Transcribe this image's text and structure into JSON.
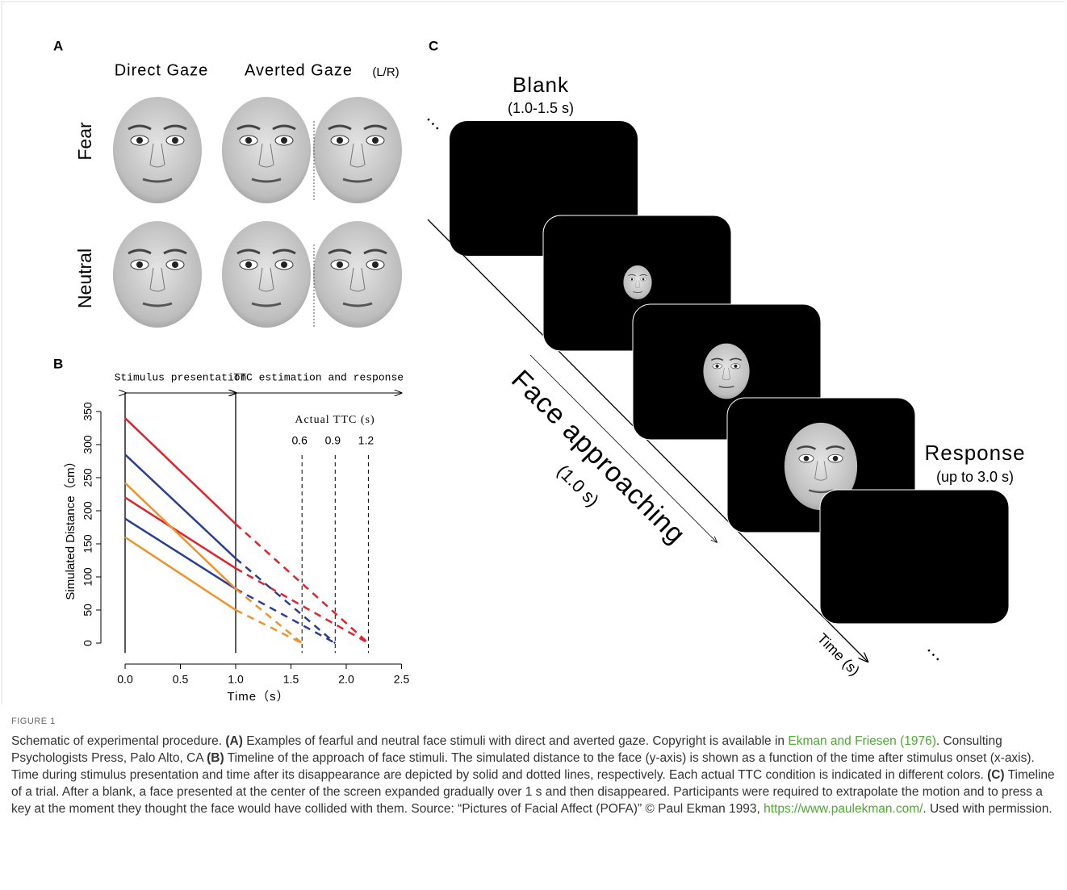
{
  "panel_a": {
    "label": "A",
    "columns": [
      "Direct Gaze",
      "Averted Gaze"
    ],
    "column_note": "(L/R)",
    "rows": [
      {
        "label": "Fear",
        "color": "#c1272d"
      },
      {
        "label": "Neutral",
        "color": "#a9a9a9"
      }
    ]
  },
  "chart_data": {
    "type": "line",
    "label": "B",
    "xlabel": "Time（s）",
    "ylabel": "Simulated Distance（cm）",
    "xlim": [
      -0.1,
      2.6
    ],
    "ylim": [
      -15,
      365
    ],
    "xticks": [
      {
        "value": 0,
        "label": "0.0"
      },
      0.5,
      {
        "value": 1,
        "label": "1.0"
      },
      1.5,
      {
        "value": 2,
        "label": "2.0"
      },
      2.5
    ],
    "yticks": [
      0,
      50,
      100,
      150,
      200,
      250,
      300,
      350
    ],
    "phases": [
      {
        "label": "Stimulus presentation",
        "start": 0,
        "end": 1
      },
      {
        "label": "TTC estimation and response",
        "start": 1,
        "end": 2.5
      }
    ],
    "ttc_title": "Actual TTC (s)",
    "ttc_lines": [
      {
        "ttc": 0.6,
        "x": 1.6,
        "color": "#f0922b"
      },
      {
        "ttc": 0.9,
        "x": 1.9,
        "color": "#2a3f94"
      },
      {
        "ttc": 1.2,
        "x": 2.2,
        "color": "#e0242c"
      }
    ],
    "series": [
      {
        "color": "#e0242c",
        "x": [
          0,
          1,
          2.2
        ],
        "values": [
          340,
          180,
          0
        ]
      },
      {
        "color": "#e0242c",
        "x": [
          0,
          1,
          2.2
        ],
        "values": [
          220,
          113,
          0
        ]
      },
      {
        "color": "#2a3f94",
        "x": [
          0,
          1,
          1.9
        ],
        "values": [
          285,
          128,
          0
        ]
      },
      {
        "color": "#2a3f94",
        "x": [
          0,
          1,
          1.9
        ],
        "values": [
          188,
          82,
          0
        ]
      },
      {
        "color": "#f0922b",
        "x": [
          0,
          1,
          1.6
        ],
        "values": [
          242,
          82,
          0
        ]
      },
      {
        "color": "#f0922b",
        "x": [
          0,
          1,
          1.6
        ],
        "values": [
          160,
          50,
          0
        ]
      }
    ]
  },
  "panel_c": {
    "label": "C",
    "blank": "Blank",
    "blank_duration": "(1.0-1.5 s)",
    "approach": "Face approaching",
    "approach_duration": "(1.0 s)",
    "response": "Response",
    "response_duration": "(up to 3.0 s)",
    "time_axis": "Time (s)",
    "ellipsis": "…"
  },
  "caption": {
    "figure": "FIGURE 1",
    "runs": [
      {
        "text": "Schematic of experimental procedure. ",
        "style": "plain"
      },
      {
        "text": "(A)",
        "style": "bold"
      },
      {
        "text": " Examples of fearful and neutral face stimuli with direct and averted gaze. Copyright is available in ",
        "style": "plain"
      },
      {
        "text": "Ekman and Friesen (1976)",
        "style": "link"
      },
      {
        "text": ". Consulting Psychologists Press, Palo Alto, CA ",
        "style": "plain"
      },
      {
        "text": "(B)",
        "style": "bold"
      },
      {
        "text": " Timeline of the approach of face stimuli. The simulated distance to the face (y-axis) is shown as a function of the time after stimulus onset (x-axis). Time during stimulus presentation and time after its disappearance are depicted by solid and dotted lines, respectively. Each actual TTC condition is indicated in different colors. ",
        "style": "plain"
      },
      {
        "text": "(C)",
        "style": "bold"
      },
      {
        "text": " Timeline of a trial. After a blank, a face presented at the center of the screen expanded gradually over 1 s and then disappeared. Participants were required to extrapolate the motion and to press a key at the moment they thought the face would have collided with them. Source: “Pictures of Facial Affect (POFA)” © Paul Ekman 1993, ",
        "style": "plain"
      },
      {
        "text": "https://www.paulekman.com/",
        "style": "link"
      },
      {
        "text": ". Used with permission.",
        "style": "plain"
      }
    ]
  }
}
